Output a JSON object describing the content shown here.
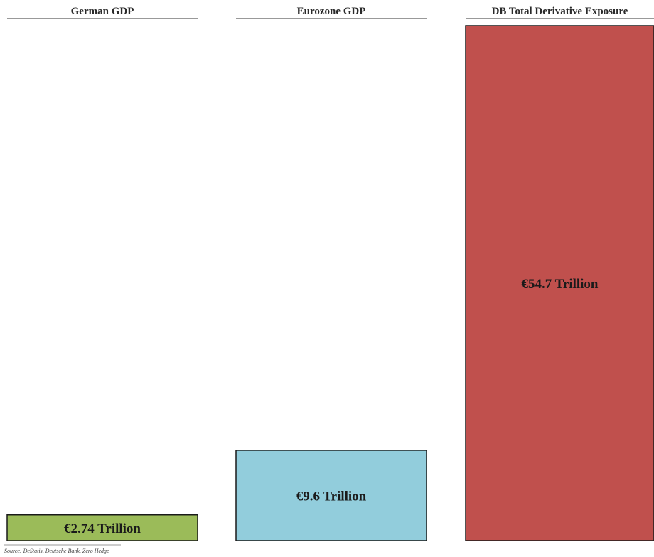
{
  "chart_data": {
    "type": "bar",
    "categories": [
      "German GDP",
      "Eurozone GDP",
      "DB Total Derivative Exposure"
    ],
    "values": [
      2.74,
      9.6,
      54.7
    ],
    "unit": "€ Trillion",
    "data_labels": [
      "€2.74 Trillion",
      "€9.6 Trillion",
      "€54.7 Trillion"
    ],
    "colors": [
      "#9bbb59",
      "#92cddc",
      "#c0504d"
    ],
    "grid": false,
    "legend": "none"
  },
  "source_note": "Source: DeStatis, Deutsche Bank, Zero Hedge"
}
